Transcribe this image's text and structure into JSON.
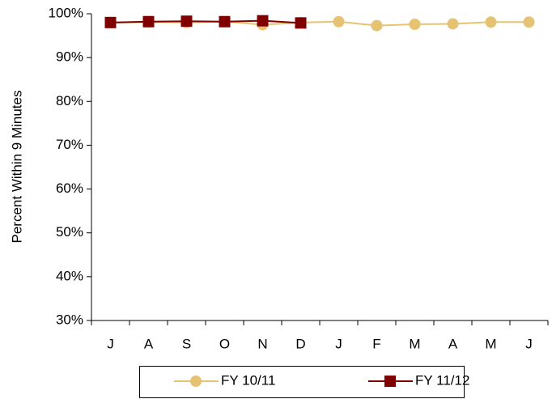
{
  "chart_data": {
    "type": "line",
    "y_label": "Percent Within 9 Minutes",
    "categories": [
      "J",
      "A",
      "S",
      "O",
      "N",
      "D",
      "J",
      "F",
      "M",
      "A",
      "M",
      "J"
    ],
    "series": [
      {
        "name": "FY 10/11",
        "color": "#e5c372",
        "marker": "circle",
        "values": [
          98.0,
          98.1,
          98.0,
          98.2,
          97.5,
          98.0,
          98.2,
          97.3,
          97.6,
          97.7,
          98.1,
          98.1
        ]
      },
      {
        "name": "FY 11/12",
        "color": "#800000",
        "marker": "square",
        "values": [
          98.0,
          98.2,
          98.3,
          98.2,
          98.4,
          97.9,
          null,
          null,
          null,
          null,
          null,
          null
        ]
      }
    ],
    "ylim": [
      30,
      100
    ],
    "yticks": [
      {
        "value": 30,
        "label": "30%"
      },
      {
        "value": 40,
        "label": "40%"
      },
      {
        "value": 50,
        "label": "50%"
      },
      {
        "value": 60,
        "label": "60%"
      },
      {
        "value": 70,
        "label": "70%"
      },
      {
        "value": 80,
        "label": "80%"
      },
      {
        "value": 90,
        "label": "90%"
      },
      {
        "value": 100,
        "label": "100%"
      }
    ],
    "grid": false,
    "legend": "bottom"
  }
}
